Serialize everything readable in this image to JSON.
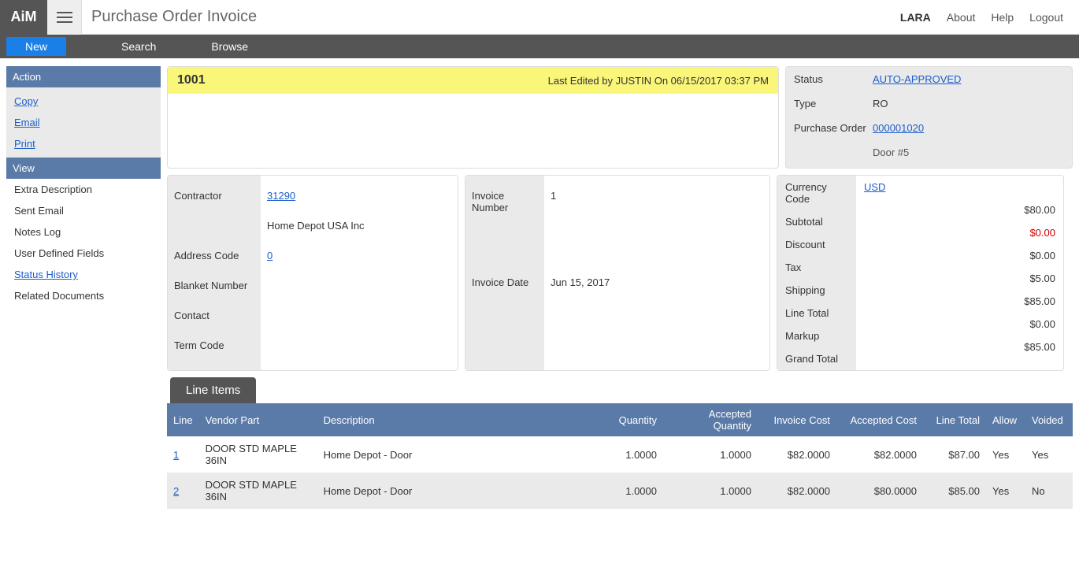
{
  "app": {
    "logo": "AiM",
    "title": "Purchase Order Invoice"
  },
  "topbar": {
    "user": "LARA",
    "about": "About",
    "help": "Help",
    "logout": "Logout"
  },
  "menubar": {
    "new": "New",
    "search": "Search",
    "browse": "Browse"
  },
  "sidebar": {
    "action_header": "Action",
    "actions": {
      "copy": "Copy",
      "email": "Email",
      "print": "Print"
    },
    "view_header": "View",
    "views": {
      "extra": "Extra Description",
      "sent": "Sent Email",
      "notes": "Notes Log",
      "udf": "User Defined Fields",
      "status_history": "Status History",
      "related": "Related Documents"
    }
  },
  "banner": {
    "number": "1001",
    "edited": "Last Edited by JUSTIN On 06/15/2017 03:37 PM"
  },
  "status": {
    "status_label": "Status",
    "status_value": "AUTO-APPROVED",
    "type_label": "Type",
    "type_value": "RO",
    "po_label": "Purchase Order",
    "po_value": "000001020",
    "po_desc": "Door #5"
  },
  "contractor": {
    "contractor_label": "Contractor",
    "contractor_link": "31290",
    "contractor_name": "Home Depot USA Inc",
    "address_label": "Address Code",
    "address_link": "0",
    "blanket_label": "Blanket Number",
    "contact_label": "Contact",
    "term_label": "Term Code"
  },
  "invoice": {
    "num_label": "Invoice Number",
    "num_value": "1",
    "date_label": "Invoice Date",
    "date_value": "Jun 15, 2017"
  },
  "totals": {
    "currency_label": "Currency Code",
    "currency_value": "USD",
    "subtotal_label": "Subtotal",
    "subtotal_value": "$80.00",
    "discount_label": "Discount",
    "discount_value": "$0.00",
    "tax_label": "Tax",
    "tax_value": "$0.00",
    "shipping_label": "Shipping",
    "shipping_value": "$5.00",
    "linetotal_label": "Line Total",
    "linetotal_value": "$85.00",
    "markup_label": "Markup",
    "markup_value": "$0.00",
    "grand_label": "Grand Total",
    "grand_value": "$85.00"
  },
  "lineitems": {
    "tab": "Line Items",
    "headers": {
      "line": "Line",
      "vendor": "Vendor Part",
      "desc": "Description",
      "qty": "Quantity",
      "accqty": "Accepted Quantity",
      "invcost": "Invoice Cost",
      "acccost": "Accepted Cost",
      "linetotal": "Line Total",
      "allow": "Allow",
      "voided": "Voided"
    },
    "rows": [
      {
        "line": "1",
        "vendor": "DOOR STD MAPLE 36IN",
        "desc": "Home Depot - Door",
        "qty": "1.0000",
        "accqty": "1.0000",
        "invcost": "$82.0000",
        "acccost": "$82.0000",
        "linetotal": "$87.00",
        "allow": "Yes",
        "voided": "Yes"
      },
      {
        "line": "2",
        "vendor": "DOOR STD MAPLE 36IN",
        "desc": "Home Depot - Door",
        "qty": "1.0000",
        "accqty": "1.0000",
        "invcost": "$82.0000",
        "acccost": "$80.0000",
        "linetotal": "$85.00",
        "allow": "Yes",
        "voided": "No"
      }
    ]
  }
}
